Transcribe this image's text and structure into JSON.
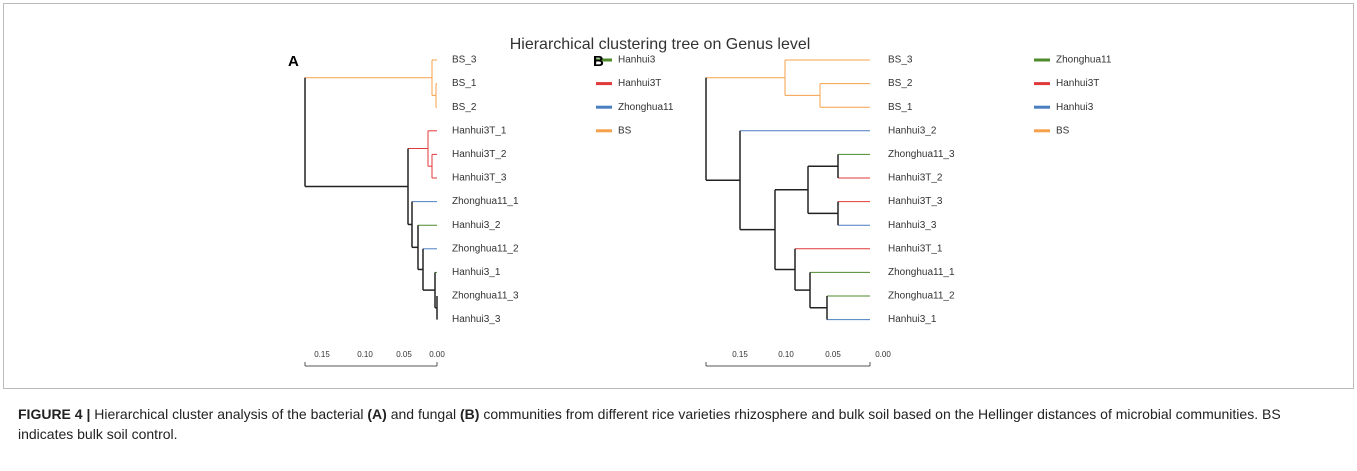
{
  "figure": {
    "title": "Hierarchical clustering tree on Genus level",
    "panels": [
      {
        "label": "A",
        "leaves": [
          "BS_3",
          "BS_1",
          "BS_2",
          "Hanhui3T_1",
          "Hanhui3T_2",
          "Hanhui3T_3",
          "Zhonghua11_1",
          "Hanhui3_2",
          "Zhonghua11_2",
          "Hanhui3_1",
          "Zhonghua11_3",
          "Hanhui3_3"
        ],
        "legend": [
          {
            "name": "Hanhui3",
            "color": "#4f8a2b"
          },
          {
            "name": "Hanhui3T",
            "color": "#e0393a"
          },
          {
            "name": "Zhonghua11",
            "color": "#4a7fc1"
          },
          {
            "name": "BS",
            "color": "#f5a04a"
          }
        ],
        "scale": [
          "0.15",
          "0.10",
          "0.05",
          "0.00"
        ]
      },
      {
        "label": "B",
        "leaves": [
          "BS_3",
          "BS_2",
          "BS_1",
          "Hanhui3_2",
          "Zhonghua11_3",
          "Hanhui3T_2",
          "Hanhui3T_3",
          "Hanhui3_3",
          "Hanhui3T_1",
          "Zhonghua11_1",
          "Zhonghua11_2",
          "Hanhui3_1"
        ],
        "legend": [
          {
            "name": "Zhonghua11",
            "color": "#4f8a2b"
          },
          {
            "name": "Hanhui3T",
            "color": "#e0393a"
          },
          {
            "name": "Hanhui3",
            "color": "#4a7fc1"
          },
          {
            "name": "BS",
            "color": "#f5a04a"
          }
        ],
        "scale": [
          "0.15",
          "0.10",
          "0.05",
          "0.00"
        ]
      }
    ]
  },
  "caption": {
    "label": "FIGURE 4 |",
    "parts": [
      " Hierarchical cluster analysis of the bacterial ",
      "(A)",
      " and fungal ",
      "(B)",
      " communities from different rice varieties rhizosphere and bulk soil based on the Hellinger distances of microbial communities. BS indicates bulk soil control."
    ]
  }
}
